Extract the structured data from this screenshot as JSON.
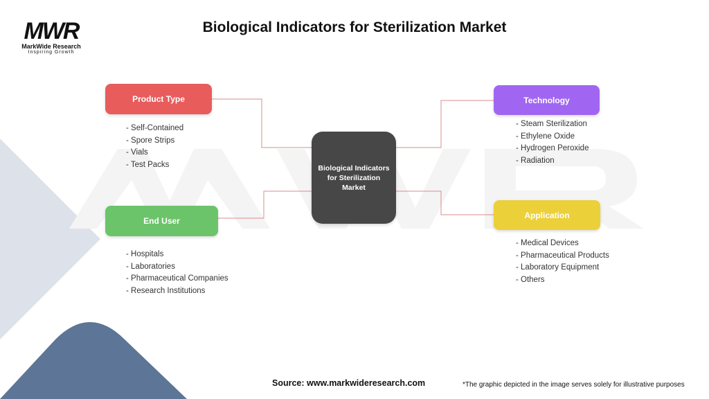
{
  "header": {
    "title": "Biological Indicators for Sterilization Market"
  },
  "logo": {
    "mark": "MWR",
    "name": "MarkWide Research",
    "tagline": "Inspiring Growth"
  },
  "center": {
    "label": "Biological Indicators for Sterilization Market"
  },
  "categories": [
    {
      "label": "Product Type",
      "color": "#e85c5c",
      "items": [
        "- Self-Contained",
        "- Spore Strips",
        "- Vials",
        "- Test Packs"
      ]
    },
    {
      "label": "Technology",
      "color": "#a066f2",
      "items": [
        "- Steam Sterilization",
        "- Ethylene Oxide",
        "- Hydrogen Peroxide",
        "- Radiation"
      ]
    },
    {
      "label": "End User",
      "color": "#6cc46a",
      "items": [
        "- Hospitals",
        "- Laboratories",
        "- Pharmaceutical Companies",
        "- Research Institutions"
      ]
    },
    {
      "label": "Application",
      "color": "#ecd03a",
      "items": [
        "- Medical Devices",
        "- Pharmaceutical Products",
        "- Laboratory Equipment",
        "- Others"
      ]
    }
  ],
  "footer": {
    "source": "Source: www.markwideresearch.com",
    "disclaimer": "*The graphic depicted in the image serves solely for illustrative purposes"
  }
}
